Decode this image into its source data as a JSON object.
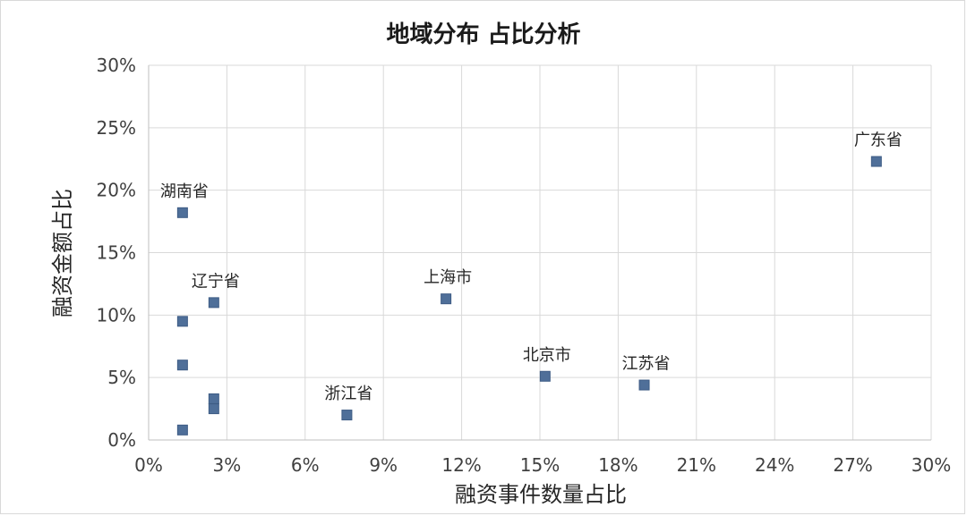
{
  "chart_data": {
    "type": "scatter",
    "title": "地域分布 占比分析",
    "xlabel": "融资事件数量占比",
    "ylabel": "融资金额占比",
    "xlim": [
      0,
      30
    ],
    "ylim": [
      0,
      30
    ],
    "x_ticks": [
      "0%",
      "3%",
      "6%",
      "9%",
      "12%",
      "15%",
      "18%",
      "21%",
      "24%",
      "27%",
      "30%"
    ],
    "y_ticks": [
      "0%",
      "5%",
      "10%",
      "15%",
      "20%",
      "25%",
      "30%"
    ],
    "grid": true,
    "marker_color": "#4f6f99",
    "points": [
      {
        "label": "广东省",
        "x": 27.9,
        "y": 22.3
      },
      {
        "label": "湖南省",
        "x": 1.3,
        "y": 18.2
      },
      {
        "label": "上海市",
        "x": 11.4,
        "y": 11.3
      },
      {
        "label": "辽宁省",
        "x": 2.5,
        "y": 11.0
      },
      {
        "label": "",
        "x": 1.3,
        "y": 9.5
      },
      {
        "label": "",
        "x": 1.3,
        "y": 6.0
      },
      {
        "label": "北京市",
        "x": 15.2,
        "y": 5.1
      },
      {
        "label": "江苏省",
        "x": 19.0,
        "y": 4.4
      },
      {
        "label": "",
        "x": 2.5,
        "y": 3.3
      },
      {
        "label": "",
        "x": 2.5,
        "y": 2.5
      },
      {
        "label": "浙江省",
        "x": 7.6,
        "y": 2.0
      },
      {
        "label": "",
        "x": 1.3,
        "y": 0.8
      }
    ]
  }
}
